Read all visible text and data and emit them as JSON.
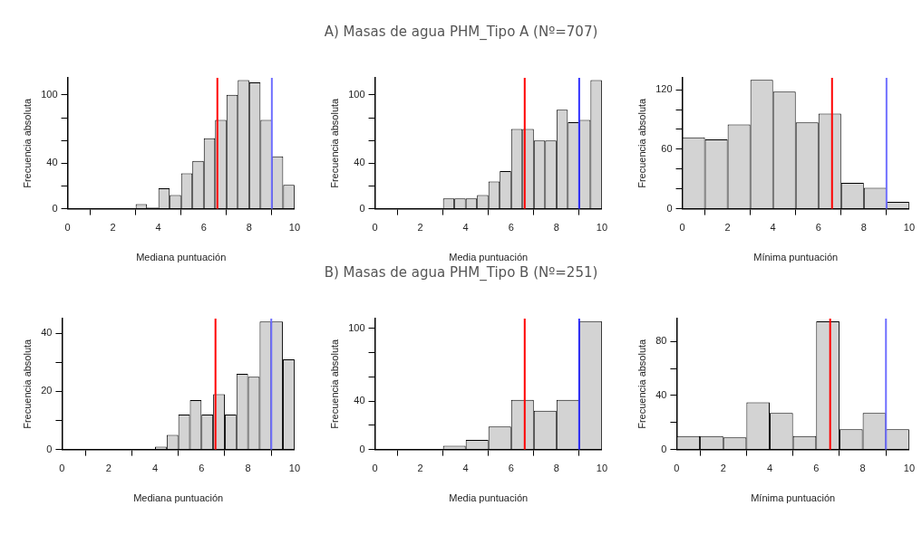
{
  "chart_data": [
    {
      "type": "histogram",
      "xlabel": "Mediana puntuación",
      "ylabel": "Frecuencia absoluta",
      "bins": [
        3,
        3.5,
        4,
        4.5,
        5,
        5.5,
        6,
        6.5,
        7,
        7.5,
        8,
        8.5,
        9,
        9.5,
        10
      ],
      "values": [
        4,
        1,
        18,
        12,
        31,
        42,
        62,
        78,
        100,
        113,
        111,
        78,
        46,
        21
      ],
      "color": "#d3d3d3",
      "xlim": [
        0,
        10
      ],
      "xticks": [
        0,
        2,
        4,
        6,
        8,
        10
      ],
      "ylim": [
        0,
        115
      ],
      "yticks": [
        0,
        {
          "value": 20,
          "label": null
        },
        40,
        {
          "value": 60,
          "label": null
        },
        {
          "value": 80,
          "label": null
        },
        100
      ],
      "ref_lines": [
        {
          "axis": "x",
          "value": 6.6,
          "color": "#ff0000"
        },
        {
          "axis": "x",
          "value": 9.0,
          "color": "#7070ff"
        }
      ],
      "grid": false,
      "legend": false
    },
    {
      "type": "histogram",
      "title": "A) Masas de agua PHM_Tipo A (Nº=707)",
      "xlabel": "Media puntuación",
      "ylabel": "Frecuencia absoluta",
      "bins": [
        3,
        3.5,
        4,
        4.5,
        5,
        5.5,
        6,
        6.5,
        7,
        7.5,
        8,
        8.5,
        9,
        9.5,
        10
      ],
      "values": [
        9,
        9,
        9,
        12,
        24,
        33,
        70,
        70,
        60,
        60,
        87,
        76,
        78,
        113
      ],
      "color": "#d3d3d3",
      "xlim": [
        0,
        10
      ],
      "xticks": [
        0,
        2,
        4,
        6,
        8,
        10
      ],
      "ylim": [
        0,
        115
      ],
      "yticks": [
        0,
        {
          "value": 20,
          "label": null
        },
        40,
        {
          "value": 60,
          "label": null
        },
        {
          "value": 80,
          "label": null
        },
        100
      ],
      "ref_lines": [
        {
          "axis": "x",
          "value": 6.6,
          "color": "#ff0000"
        },
        {
          "axis": "x",
          "value": 9.0,
          "color": "#3030ff"
        }
      ],
      "grid": false,
      "legend": false
    },
    {
      "type": "histogram",
      "xlabel": "Mínima puntuación",
      "ylabel": "Frecuencia absoluta",
      "bins": [
        0,
        1,
        2,
        3,
        4,
        5,
        6,
        7,
        8,
        9,
        10
      ],
      "values": [
        72,
        70,
        85,
        130,
        118,
        87,
        96,
        26,
        21,
        7
      ],
      "color": "#d3d3d3",
      "xlim": [
        0,
        10
      ],
      "xticks": [
        0,
        2,
        4,
        6,
        8,
        10
      ],
      "ylim": [
        0,
        132
      ],
      "yticks": [
        0,
        {
          "value": 20,
          "label": null
        },
        {
          "value": 40,
          "label": null
        },
        60,
        {
          "value": 80,
          "label": null
        },
        {
          "value": 100,
          "label": null
        },
        120
      ],
      "ref_lines": [
        {
          "axis": "x",
          "value": 6.6,
          "color": "#ff0000"
        },
        {
          "axis": "x",
          "value": 9.0,
          "color": "#7070ff"
        }
      ],
      "grid": false,
      "legend": false
    },
    {
      "type": "histogram",
      "xlabel": "Mediana puntuación",
      "ylabel": "Frecuencia absoluta",
      "bins": [
        4,
        4.5,
        5,
        5.5,
        6,
        6.5,
        7,
        7.5,
        8,
        8.5,
        9,
        9.5,
        10
      ],
      "values": [
        1,
        5,
        12,
        17,
        12,
        19,
        12,
        26,
        25,
        44,
        44,
        31
      ],
      "color": "#d3d3d3",
      "xlim": [
        0,
        10
      ],
      "xticks": [
        0,
        2,
        4,
        6,
        8,
        10
      ],
      "ylim": [
        0,
        45
      ],
      "yticks": [
        0,
        {
          "value": 10,
          "label": null
        },
        20,
        {
          "value": 30,
          "label": null
        },
        40
      ],
      "ref_lines": [
        {
          "axis": "x",
          "value": 6.6,
          "color": "#ff0000"
        },
        {
          "axis": "x",
          "value": 9.0,
          "color": "#7070ff"
        }
      ],
      "grid": false,
      "legend": false
    },
    {
      "type": "histogram",
      "title": "B) Masas de agua PHM_Tipo B (Nº=251)",
      "xlabel": "Media puntuación",
      "ylabel": "Frecuencia absoluta",
      "bins": [
        3,
        4,
        5,
        6,
        7,
        8,
        9,
        10
      ],
      "values": [
        3,
        8,
        19,
        41,
        32,
        41,
        106
      ],
      "color": "#d3d3d3",
      "xlim": [
        0,
        10
      ],
      "xticks": [
        0,
        2,
        4,
        6,
        8,
        10
      ],
      "ylim": [
        0,
        108
      ],
      "yticks": [
        0,
        {
          "value": 20,
          "label": null
        },
        40,
        {
          "value": 60,
          "label": null
        },
        {
          "value": 80,
          "label": null
        },
        100
      ],
      "ref_lines": [
        {
          "axis": "x",
          "value": 6.6,
          "color": "#ff0000"
        },
        {
          "axis": "x",
          "value": 9.0,
          "color": "#3030ff"
        }
      ],
      "grid": false,
      "legend": false
    },
    {
      "type": "histogram",
      "xlabel": "Mínima puntuación",
      "ylabel": "Frecuencia absoluta",
      "bins": [
        0,
        1,
        2,
        3,
        4,
        5,
        6,
        7,
        8,
        9,
        10
      ],
      "values": [
        10,
        10,
        9,
        35,
        27,
        10,
        95,
        15,
        27,
        15
      ],
      "color": "#d3d3d3",
      "xlim": [
        0,
        10
      ],
      "xticks": [
        0,
        2,
        4,
        6,
        8,
        10
      ],
      "ylim": [
        0,
        97
      ],
      "yticks": [
        0,
        {
          "value": 20,
          "label": null
        },
        40,
        {
          "value": 60,
          "label": null
        },
        80
      ],
      "ref_lines": [
        {
          "axis": "x",
          "value": 6.6,
          "color": "#ff0000"
        },
        {
          "axis": "x",
          "value": 9.0,
          "color": "#7070ff"
        }
      ],
      "grid": false,
      "legend": false
    }
  ]
}
